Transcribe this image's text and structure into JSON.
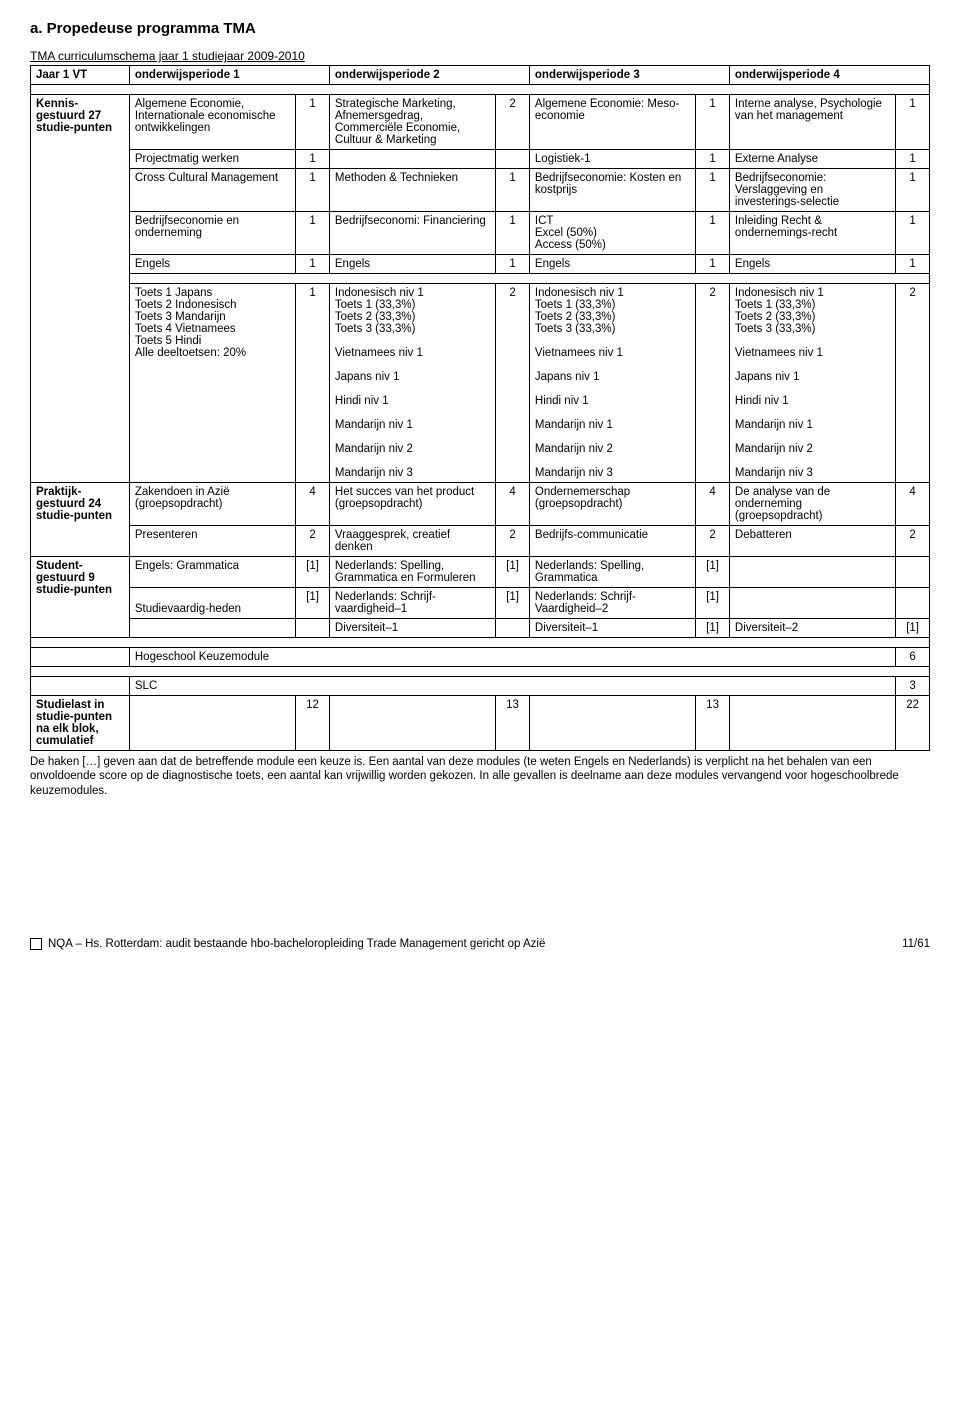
{
  "heading": "a. Propedeuse programma TMA",
  "subtitle": "TMA curriculumschema jaar 1 studiejaar 2009-2010",
  "headers": {
    "col0": "Jaar 1 VT",
    "col1": "onderwijsperiode 1",
    "col2": "onderwijsperiode 2",
    "col3": "onderwijsperiode 3",
    "col4": "onderwijsperiode 4"
  },
  "section1": {
    "label": "Kennis-gestuurd 27 studie-punten",
    "rows": [
      {
        "c1": "Algemene Economie, Internationale economische ontwikkelingen",
        "n1": "1",
        "c2": "Strategische Marketing, Afnemersgedrag, Commerciële Economie, Cultuur & Marketing",
        "n2": "2",
        "c3": "Algemene Economie: Meso-economie",
        "n3": "1",
        "c4": "Interne analyse, Psychologie van het management",
        "n4": "1"
      },
      {
        "c1": "Projectmatig werken",
        "n1": "1",
        "c2": "",
        "n2": "",
        "c3": "Logistiek-1",
        "n3": "1",
        "c4": "Externe Analyse",
        "n4": "1"
      },
      {
        "c1": "Cross Cultural Management",
        "n1": "1",
        "c2": "Methoden & Technieken",
        "n2": "1",
        "c3": "Bedrijfseconomie: Kosten en kostprijs",
        "n3": "1",
        "c4": "Bedrijfseconomie: Verslaggeving en investerings-selectie",
        "n4": "1"
      },
      {
        "c1": "Bedrijfseconomie en onderneming",
        "n1": "1",
        "c2": "Bedrijfseconomi: Financiering",
        "n2": "1",
        "c3": "ICT\nExcel (50%)\nAccess (50%)",
        "n3": "1",
        "c4": "Inleiding Recht & ondernemings-recht",
        "n4": "1"
      },
      {
        "c1": "Engels",
        "n1": "1",
        "c2": "Engels",
        "n2": "1",
        "c3": "Engels",
        "n3": "1",
        "c4": "Engels",
        "n4": "1"
      }
    ]
  },
  "section2": {
    "rows": [
      {
        "c1": "Toets 1 Japans\nToets 2 Indonesisch\nToets 3 Mandarijn\nToets 4 Vietnamees\nToets 5 Hindi\nAlle deeltoetsen: 20%",
        "n1": "1",
        "c2": "Indonesisch niv 1\nToets 1 (33,3%)\nToets 2 (33,3%)\nToets 3 (33,3%)\n\nVietnamees niv 1\n\nJapans niv 1\n\nHindi niv 1\n\nMandarijn niv 1\n\nMandarijn niv 2\n\nMandarijn niv 3",
        "n2": "2",
        "c3": "Indonesisch niv 1\nToets 1 (33,3%)\nToets 2 (33,3%)\nToets 3 (33,3%)\n\nVietnamees niv 1\n\nJapans niv 1\n\nHindi niv 1\n\nMandarijn niv 1\n\nMandarijn niv 2\n\nMandarijn niv 3",
        "n3": "2",
        "c4": "Indonesisch niv 1\nToets 1 (33,3%)\nToets 2 (33,3%)\nToets 3 (33,3%)\n\nVietnamees niv 1\n\nJapans niv 1\n\nHindi niv 1\n\nMandarijn niv 1\n\nMandarijn niv 2\n\nMandarijn niv 3",
        "n4": "2"
      }
    ]
  },
  "section3": {
    "label": "Praktijk-gestuurd 24 studie-punten",
    "rows": [
      {
        "c1": "Zakendoen in Azië (groepsopdracht)",
        "n1": "4",
        "c2": "Het succes van het product (groepsopdracht)",
        "n2": "4",
        "c3": "Ondernemerschap (groepsopdracht)",
        "n3": "4",
        "c4": "De analyse van de onderneming (groepsopdracht)",
        "n4": "4"
      },
      {
        "c1": "Presenteren",
        "n1": "2",
        "c2": "Vraaggesprek, creatief denken",
        "n2": "2",
        "c3": "Bedrijfs-communicatie",
        "n3": "2",
        "c4": "Debatteren",
        "n4": "2"
      }
    ]
  },
  "section4": {
    "label": "Student-gestuurd 9 studie-punten",
    "rows": [
      {
        "c1": "Engels: Grammatica",
        "n1": "[1]",
        "c2": "Nederlands: Spelling, Grammatica en Formuleren",
        "n2": "[1]",
        "c3": "Nederlands: Spelling, Grammatica",
        "n3": "[1]",
        "c4": "",
        "n4": ""
      },
      {
        "c1": "\nStudievaardig-heden",
        "n1": "[1]",
        "c2": "Nederlands: Schrijf-vaardigheid–1",
        "n2": "[1]",
        "c3": "Nederlands: Schrijf-Vaardigheid–2",
        "n3": "[1]",
        "c4": "",
        "n4": ""
      },
      {
        "c1": "",
        "n1": "",
        "c2": "Diversiteit–1",
        "n2": "",
        "c3": "Diversiteit–1",
        "n3": "[1]",
        "c4": "Diversiteit–2",
        "n4": "[1]"
      }
    ]
  },
  "section5": {
    "rows": [
      {
        "text": "Hogeschool Keuzemodule",
        "val": "6"
      },
      {
        "text": "SLC",
        "val": "3"
      }
    ]
  },
  "section6": {
    "label": "Studielast in studie-punten na elk blok, cumulatief",
    "vals": {
      "n1": "12",
      "n2": "13",
      "n3": "13",
      "n4": "22"
    }
  },
  "footnote": "De haken […] geven aan dat de betreffende module een keuze is. Een aantal van deze modules (te weten Engels en Nederlands) is verplicht na het behalen van een onvoldoende score op de diagnostische toets, een aantal kan vrijwillig worden gekozen. In alle gevallen is deelname aan deze modules vervangend voor hogeschoolbrede keuzemodules.",
  "footer": {
    "text": "NQA – Hs. Rotterdam: audit bestaande hbo-bacheloropleiding Trade Management gericht op Azië",
    "page": "11/61"
  }
}
